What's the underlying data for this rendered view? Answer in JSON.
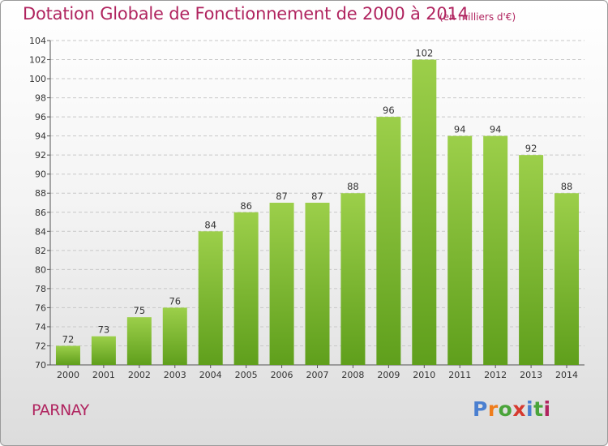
{
  "header": {
    "title": "Dotation Globale de Fonctionnement de 2000 à 2014",
    "unit": "(en milliers d'€)"
  },
  "footer": {
    "commune": "PARNAY",
    "logo": [
      "P",
      "r",
      "o",
      "x",
      "i",
      "t",
      "i"
    ],
    "logo_colors": [
      "#4a7fd0",
      "#ef7d1c",
      "#4aa43a",
      "#d63a2f",
      "#4a7fd0",
      "#4aa43a",
      "#b0245f"
    ]
  },
  "chart_data": {
    "type": "bar",
    "title": "Dotation Globale de Fonctionnement de 2000 à 2014",
    "subtitle": "(en milliers d'€)",
    "categories": [
      "2000",
      "2001",
      "2002",
      "2003",
      "2004",
      "2005",
      "2006",
      "2007",
      "2008",
      "2009",
      "2010",
      "2011",
      "2012",
      "2013",
      "2014"
    ],
    "values": [
      72,
      73,
      75,
      76,
      84,
      86,
      87,
      87,
      88,
      96,
      102,
      94,
      94,
      92,
      88
    ],
    "ylim": [
      70,
      104
    ],
    "yticks": [
      70,
      72,
      74,
      76,
      78,
      80,
      82,
      84,
      86,
      88,
      90,
      92,
      94,
      96,
      98,
      100,
      102,
      104
    ],
    "grid": true,
    "bar_color_top": "#9ccf4a",
    "bar_color_bottom": "#5f9f1c"
  }
}
